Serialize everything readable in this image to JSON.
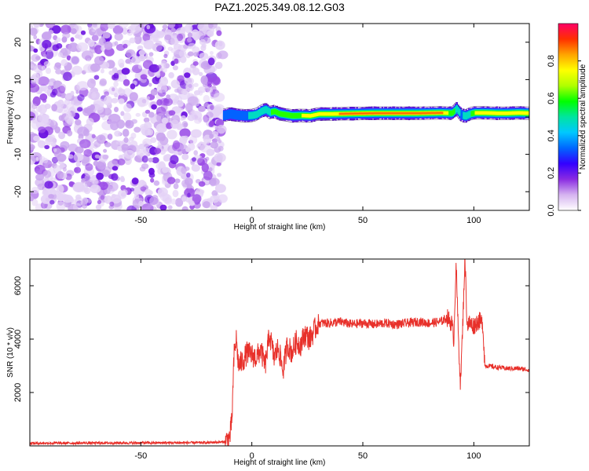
{
  "figure": {
    "title": "PAZ1.2025.349.08.12.G03"
  },
  "chart_data": [
    {
      "type": "heatmap",
      "title": "PAZ1.2025.349.08.12.G03",
      "xlabel": "Height of straight line (km)",
      "ylabel": "Frequency (Hz)",
      "xlim": [
        -100,
        125
      ],
      "ylim": [
        -25,
        25
      ],
      "xticks": [
        -50,
        0,
        50,
        100
      ],
      "yticks": [
        -20,
        -10,
        0,
        10,
        20
      ],
      "xtick_labels": [
        "-50",
        "0",
        "50",
        "100"
      ],
      "ytick_labels": [
        "-20",
        "-10",
        "0",
        "10",
        "20"
      ],
      "noise_region": {
        "x_from": -100,
        "x_to": -13,
        "note": "random low-amplitude speckle"
      },
      "ridge": {
        "x": [
          -13,
          -10,
          -7,
          -3,
          0,
          2,
          4,
          6,
          8,
          10,
          12,
          15,
          18,
          22,
          26,
          30,
          35,
          45,
          55,
          65,
          75,
          85,
          90,
          92,
          94,
          96,
          98,
          100,
          105,
          110,
          115,
          120,
          125
        ],
        "freq": [
          0.4,
          0.8,
          0.5,
          0.3,
          0.4,
          0.7,
          1.5,
          2.0,
          1.2,
          1.5,
          0.9,
          0.6,
          0.3,
          0.4,
          0.3,
          0.8,
          0.8,
          0.9,
          1.0,
          1.0,
          1.0,
          1.1,
          1.0,
          2.2,
          0.6,
          0.2,
          0.8,
          1.1,
          1.1,
          1.0,
          1.0,
          1.1,
          1.0
        ],
        "amplitude": [
          0.3,
          0.35,
          0.4,
          0.4,
          0.45,
          0.5,
          0.55,
          0.5,
          0.55,
          0.55,
          0.6,
          0.62,
          0.65,
          0.7,
          0.72,
          0.75,
          0.8,
          0.85,
          0.9,
          0.9,
          0.88,
          0.85,
          0.6,
          0.5,
          0.4,
          0.45,
          0.55,
          0.7,
          0.75,
          0.78,
          0.8,
          0.82,
          0.8
        ]
      },
      "colorbar": {
        "label": "Normalized spectral amplitude",
        "range": [
          0,
          1
        ],
        "ticks": [
          0.0,
          0.2,
          0.4,
          0.6,
          0.8
        ],
        "tick_labels": [
          "0.0",
          "0.2",
          "0.4",
          "0.6",
          "0.8"
        ],
        "colors": [
          "#ffffff",
          "#d6b4f0",
          "#8a2be2",
          "#3300ff",
          "#0066ff",
          "#00c8ff",
          "#00e5a0",
          "#00ff00",
          "#b0ff00",
          "#ffff00",
          "#ffa500",
          "#ff3000",
          "#ff0066"
        ]
      }
    },
    {
      "type": "line",
      "xlabel": "Height of straight line (km)",
      "ylabel": "SNR (10 * v/v)",
      "xlim": [
        -100,
        125
      ],
      "ylim": [
        0,
        7000
      ],
      "xticks": [
        -50,
        0,
        50,
        100
      ],
      "yticks": [
        2000,
        4000,
        6000
      ],
      "xtick_labels": [
        "-50",
        "0",
        "50",
        "100"
      ],
      "ytick_labels": [
        "2000",
        "4000",
        "6000"
      ],
      "color": "#e8302a",
      "series": [
        {
          "name": "SNR",
          "x": [
            -100,
            -60,
            -20,
            -12,
            -10,
            -9,
            -8,
            -7,
            -6,
            -4,
            -2,
            0,
            2,
            4,
            6,
            8,
            10,
            12,
            14,
            16,
            18,
            20,
            22,
            24,
            26,
            28,
            30,
            35,
            40,
            45,
            50,
            55,
            60,
            65,
            70,
            75,
            80,
            85,
            88,
            90,
            91,
            92,
            93,
            94,
            95,
            96,
            97,
            98,
            100,
            102,
            104,
            105,
            106,
            110,
            115,
            120,
            125
          ],
          "y": [
            100,
            110,
            120,
            150,
            300,
            900,
            3400,
            4000,
            3000,
            3200,
            3500,
            3400,
            3300,
            3600,
            3000,
            4200,
            3300,
            3700,
            2800,
            3800,
            3500,
            3900,
            3800,
            4200,
            4000,
            4300,
            4600,
            4600,
            4650,
            4550,
            4600,
            4550,
            4600,
            4550,
            4600,
            4650,
            4600,
            4650,
            4800,
            4600,
            4000,
            6900,
            4200,
            2300,
            4500,
            7100,
            4500,
            4600,
            4500,
            4700,
            4600,
            3000,
            3000,
            2950,
            2900,
            2900,
            2850
          ]
        }
      ]
    }
  ]
}
